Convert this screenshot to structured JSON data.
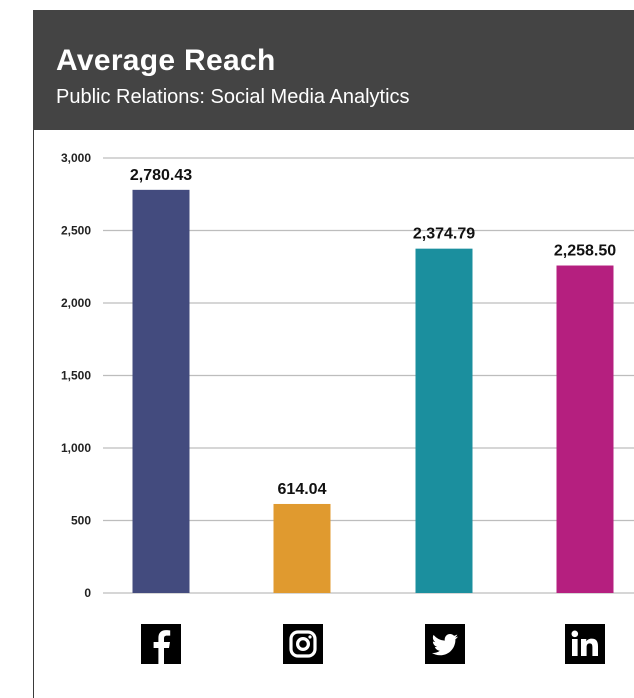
{
  "header": {
    "title": "Average Reach",
    "subtitle": "Public Relations: Social Media Analytics"
  },
  "colors": {
    "header_bg": "#444444",
    "facebook": "#434b7e",
    "instagram": "#e09a2f",
    "twitter": "#1b8f9e",
    "linkedin": "#b51f7f"
  },
  "icons": [
    "facebook-icon",
    "instagram-icon",
    "twitter-icon",
    "linkedin-icon"
  ],
  "chart_data": {
    "type": "bar",
    "title": "Average Reach",
    "subtitle": "Public Relations: Social Media Analytics",
    "categories": [
      "",
      "",
      "",
      ""
    ],
    "values": [
      2780.43,
      614.04,
      2374.79,
      2258.5
    ],
    "data_labels": [
      "2,780.43",
      "614.04",
      "2,374.79",
      "2,258.50"
    ],
    "ylim": [
      0,
      3000
    ],
    "yticks": [
      0,
      500,
      1000,
      1500,
      2000,
      2500,
      3000
    ],
    "ytick_labels": [
      "0",
      "500",
      "1,000",
      "1,500",
      "2,000",
      "2,500",
      "3,000"
    ],
    "bar_colors": [
      "#434b7e",
      "#e09a2f",
      "#1b8f9e",
      "#b51f7f"
    ],
    "grid": true,
    "xlabel": "",
    "ylabel": ""
  }
}
